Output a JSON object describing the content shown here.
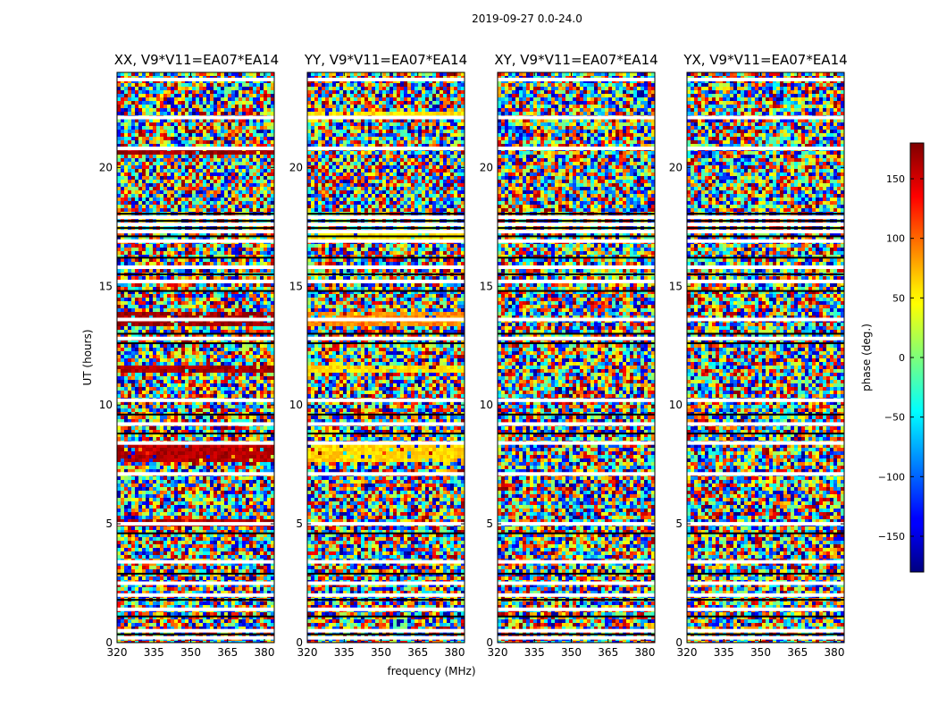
{
  "chart_data": {
    "type": "heatmap",
    "suptitle": "2019-09-27 0.0-24.0",
    "xlabel": "frequency (MHz)",
    "ylabel": "UT (hours)",
    "xlim": [
      320,
      384
    ],
    "ylim": [
      0,
      24
    ],
    "x_ticks": [
      320,
      335,
      350,
      365,
      380
    ],
    "x_tick_labels": [
      "320",
      "335",
      "350",
      "365",
      "380"
    ],
    "y_ticks": [
      0,
      5,
      10,
      15,
      20
    ],
    "y_tick_labels": [
      "0",
      "5",
      "10",
      "15",
      "20"
    ],
    "panels": [
      {
        "title": "XX, V9*V11=EA07*EA14",
        "ytick_labels_shown": true
      },
      {
        "title": "YY, V9*V11=EA07*EA14",
        "ytick_labels_shown": true
      },
      {
        "title": "XY, V9*V11=EA07*EA14",
        "ytick_labels_shown": true
      },
      {
        "title": "YX, V9*V11=EA07*EA14",
        "ytick_labels_shown": true
      }
    ],
    "colorbar": {
      "label": "phase (deg.)",
      "range": [
        -180,
        180
      ],
      "ticks": [
        150,
        100,
        50,
        0,
        -50,
        -100,
        -150
      ],
      "tick_labels": [
        "150",
        "100",
        "50",
        "0",
        "−50",
        "−100",
        "−150"
      ],
      "colormap": "jet"
    },
    "flagged_rows_hours": [
      0.2,
      0.5,
      1.4,
      2.0,
      2.5,
      3.4,
      5.0,
      7.1,
      8.4,
      9.2,
      10.2,
      12.8,
      13.6,
      15.2,
      15.8,
      16.9,
      17.3,
      17.6,
      17.9,
      20.8,
      22.1,
      23.7
    ],
    "coherent_phase_bands": [
      {
        "panel": "XX",
        "hours": [
          13.3,
          13.9
        ],
        "phase_deg": 170
      },
      {
        "panel": "XX",
        "hours": [
          11.3,
          11.6
        ],
        "phase_deg": 165
      },
      {
        "panel": "XX",
        "hours": [
          20.6,
          20.9
        ],
        "phase_deg": 170
      },
      {
        "panel": "XX",
        "hours": [
          7.6,
          8.3
        ],
        "phase_deg": 160
      },
      {
        "panel": "XX",
        "hours": [
          4.9,
          5.2
        ],
        "phase_deg": 165
      },
      {
        "panel": "YY",
        "hours": [
          13.3,
          13.9
        ],
        "phase_deg": 85
      },
      {
        "panel": "YY",
        "hours": [
          11.3,
          11.6
        ],
        "phase_deg": 55
      },
      {
        "panel": "YY",
        "hours": [
          22.0,
          22.4
        ],
        "phase_deg": 55
      },
      {
        "panel": "YY",
        "hours": [
          7.6,
          8.3
        ],
        "phase_deg": 60
      },
      {
        "panel": "YY",
        "hours": [
          16.9,
          17.2
        ],
        "phase_deg": 50
      }
    ]
  }
}
